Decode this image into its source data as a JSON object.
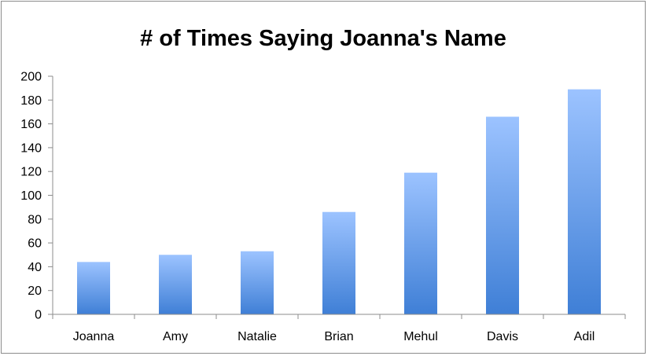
{
  "chart_data": {
    "type": "bar",
    "title": "# of Times Saying Joanna's Name",
    "xlabel": "",
    "ylabel": "",
    "categories": [
      "Joanna",
      "Amy",
      "Natalie",
      "Brian",
      "Mehul",
      "Davis",
      "Adil"
    ],
    "values": [
      44,
      50,
      53,
      86,
      119,
      166,
      189
    ],
    "ylim": [
      0,
      200
    ],
    "yticks": [
      0,
      20,
      40,
      60,
      80,
      100,
      120,
      140,
      160,
      180,
      200
    ],
    "grid": false,
    "legend": "none",
    "colors": {
      "bar_top": "#9cc3ff",
      "bar_bottom": "#3f7fd6",
      "axis": "#8c8c8c"
    }
  }
}
